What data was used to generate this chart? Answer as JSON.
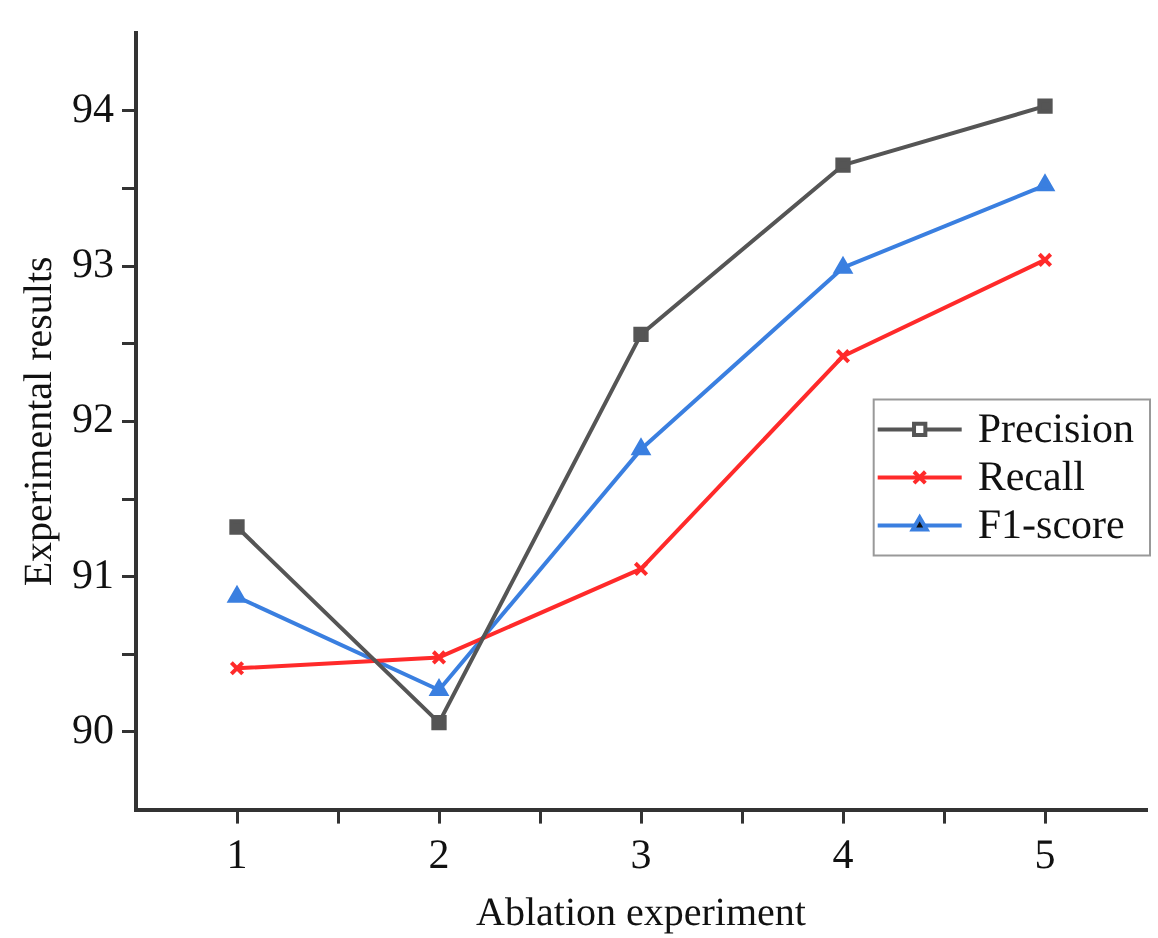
{
  "chart_data": {
    "type": "line",
    "xlabel": "Ablation experiment",
    "ylabel": "Experimental results",
    "x": [
      1,
      2,
      3,
      4,
      5
    ],
    "xlim": [
      0.5,
      5.5
    ],
    "xticks": [
      1,
      {
        "value": 1.5,
        "label": null
      },
      2,
      {
        "value": 2.5,
        "label": null
      },
      3,
      {
        "value": 3.5,
        "label": null
      },
      4,
      {
        "value": 4.5,
        "label": null
      },
      5
    ],
    "ylim": [
      89.5,
      94.5
    ],
    "yticks": [
      90,
      {
        "value": 90.5,
        "label": null
      },
      91,
      {
        "value": 91.5,
        "label": null
      },
      92,
      {
        "value": 92.5,
        "label": null
      },
      93,
      {
        "value": 93.5,
        "label": null
      },
      94
    ],
    "grid": false,
    "legend": "right",
    "line_style": "solid",
    "series": [
      {
        "name": "Precision",
        "color": "#555555",
        "marker": "square",
        "values": [
          91.32,
          90.06,
          92.56,
          93.65,
          94.03
        ]
      },
      {
        "name": "Recall",
        "color": "#ff2a2a",
        "marker": "cross",
        "values": [
          90.41,
          90.48,
          91.05,
          92.42,
          93.04
        ]
      },
      {
        "name": "F1-score",
        "color": "#3a7fe0",
        "marker": "triangle",
        "values": [
          90.87,
          90.27,
          91.82,
          92.99,
          93.52
        ]
      }
    ]
  }
}
